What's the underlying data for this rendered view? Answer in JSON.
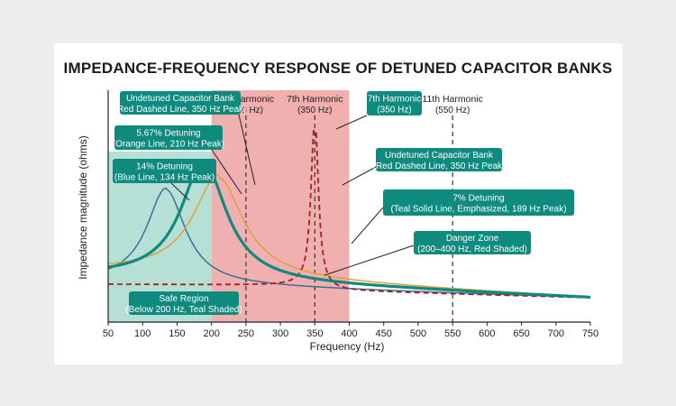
{
  "title": "IMPEDANCE-FREQUENCY RESPONSE OF DETUNED CAPACITOR BANKS",
  "colors": {
    "teal": "#0f8a7e",
    "teal_light": "#a9dacf",
    "red_zone": "#f0a7a7",
    "red_line": "#a61f1f",
    "orange": "#e0a038",
    "blue": "#3c6f95",
    "callout_bg": "#0f8a7e",
    "callout_text": "#ffffff"
  },
  "chart_data": {
    "type": "line",
    "xlabel": "Frequency (Hz)",
    "ylabel": "Impedance magnitude (ohms)",
    "xlim": [
      50,
      750
    ],
    "x_ticks": [
      50,
      100,
      150,
      200,
      250,
      300,
      350,
      400,
      450,
      500,
      550,
      600,
      650,
      700,
      750
    ],
    "y_ticks_shown": false,
    "series": [
      {
        "key": "blue",
        "name": "14% Detuning",
        "peak_hz": 134,
        "style": "solid",
        "color": "#3c6f95"
      },
      {
        "key": "orange",
        "name": "5.67% Detuning",
        "peak_hz": 210,
        "style": "solid",
        "color": "#e0a038"
      },
      {
        "key": "teal",
        "name": "7% Detuning",
        "peak_hz": 189,
        "style": "solid-bold",
        "color": "#0f8a7e"
      },
      {
        "key": "red",
        "name": "Undetuned Capacitor Bank",
        "peak_hz": 350,
        "style": "dashed",
        "color": "#a61f1f"
      }
    ],
    "regions": [
      {
        "name": "Safe Region",
        "from_hz": 50,
        "to_hz": 200,
        "color": "#a9dacf"
      },
      {
        "name": "Danger Zone",
        "from_hz": 200,
        "to_hz": 400,
        "color": "#f0a7a7"
      }
    ],
    "harmonic_lines": [
      {
        "hz": 250,
        "label": "5th Harmonic",
        "sublabel": "(250 Hz)"
      },
      {
        "hz": 350,
        "label": "7th Harmonic",
        "sublabel": "(350 Hz)"
      },
      {
        "hz": 550,
        "label": "11th Harmonic",
        "sublabel": "(550 Hz)"
      }
    ],
    "annotations": {
      "undetuned_top": [
        "Undetuned Capacitor Bank",
        "(Red Dashed Line, 350 Hz Peak)"
      ],
      "detuning_567": [
        "5.67% Detuning",
        "(Orange Line, 210 Hz Peak)"
      ],
      "detuning_14": [
        "14% Detuning",
        "(Blue Line, 134 Hz Peak)"
      ],
      "seventh_box": [
        "7th Harmonic",
        "(350 Hz)"
      ],
      "undetuned_right": [
        "Undetuned Capacitor Bank",
        "(Red Dashed Line, 350 Hz Peak)"
      ],
      "detuning_7": [
        "7% Detuning",
        "(Teal Solid Line, Emphasized, 189 Hz Peak)"
      ],
      "danger_zone": [
        "Danger Zone",
        "(200–400 Hz, Red Shaded)"
      ],
      "safe_region": [
        "Safe Region",
        "(Below 200 Hz, Teal Shaded)"
      ]
    }
  }
}
